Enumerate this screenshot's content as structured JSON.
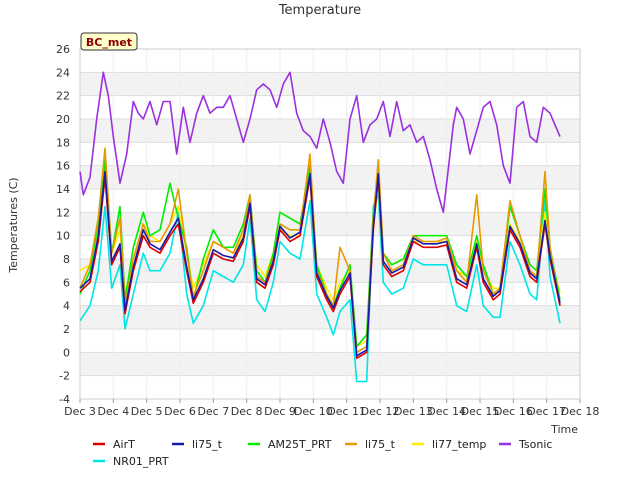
{
  "chart_data": {
    "type": "line",
    "title": "Temperature",
    "xlabel": "Time",
    "ylabel": "Temperatures (C)",
    "badge": "BC_met",
    "xlim": [
      3,
      18
    ],
    "ylim": [
      -4,
      26
    ],
    "x_ticks": [
      "Dec 3",
      "Dec 4",
      "Dec 5",
      "Dec 6",
      "Dec 7",
      "Dec 8",
      "Dec 9",
      "Dec 10",
      "Dec 11",
      "Dec 12",
      "Dec 13",
      "Dec 14",
      "Dec 15",
      "Dec 16",
      "Dec 17",
      "Dec 18"
    ],
    "y_ticks": [
      -4,
      -2,
      0,
      2,
      4,
      6,
      8,
      10,
      12,
      14,
      16,
      18,
      20,
      22,
      24,
      26
    ],
    "grid": true,
    "legend_position": "bottom",
    "series": [
      {
        "name": "AirT",
        "color": "#dd0000",
        "x": [
          3.0,
          3.3,
          3.55,
          3.75,
          3.95,
          4.2,
          4.35,
          4.6,
          4.9,
          5.1,
          5.4,
          5.7,
          5.95,
          6.2,
          6.4,
          6.7,
          7.0,
          7.3,
          7.6,
          7.9,
          8.1,
          8.3,
          8.55,
          8.8,
          9.0,
          9.3,
          9.6,
          9.9,
          10.1,
          10.4,
          10.6,
          10.8,
          11.1,
          11.3,
          11.6,
          11.8,
          11.95,
          12.1,
          12.35,
          12.7,
          13.0,
          13.3,
          13.7,
          14.0,
          14.3,
          14.6,
          14.9,
          15.1,
          15.4,
          15.6,
          15.9,
          16.2,
          16.5,
          16.7,
          16.95,
          17.1,
          17.4
        ],
        "y": [
          5.2,
          6.0,
          9.5,
          15.0,
          7.5,
          9.0,
          3.3,
          7.0,
          10.0,
          9.0,
          8.5,
          10.0,
          11.0,
          7.0,
          4.2,
          6.0,
          8.5,
          8.0,
          7.8,
          9.5,
          12.5,
          6.0,
          5.5,
          7.5,
          10.5,
          9.5,
          10.0,
          15.0,
          6.5,
          4.5,
          3.5,
          5.0,
          6.5,
          -0.5,
          0.0,
          10.5,
          15.0,
          7.5,
          6.5,
          7.0,
          9.5,
          9.0,
          9.0,
          9.2,
          6.0,
          5.5,
          9.0,
          6.0,
          4.5,
          5.0,
          10.5,
          9.0,
          6.5,
          6.0,
          11.0,
          8.0,
          4.0
        ]
      },
      {
        "name": "li75_t",
        "color": "#1a1aaa",
        "x": [
          3.0,
          3.3,
          3.55,
          3.75,
          3.95,
          4.2,
          4.35,
          4.6,
          4.9,
          5.1,
          5.4,
          5.7,
          5.95,
          6.2,
          6.4,
          6.7,
          7.0,
          7.3,
          7.6,
          7.9,
          8.1,
          8.3,
          8.55,
          8.8,
          9.0,
          9.3,
          9.6,
          9.9,
          10.1,
          10.4,
          10.6,
          10.8,
          11.1,
          11.3,
          11.6,
          11.8,
          11.95,
          12.1,
          12.35,
          12.7,
          13.0,
          13.3,
          13.7,
          14.0,
          14.3,
          14.6,
          14.9,
          15.1,
          15.4,
          15.6,
          15.9,
          16.2,
          16.5,
          16.7,
          16.95,
          17.1,
          17.4
        ],
        "y": [
          5.5,
          6.3,
          10.0,
          15.5,
          7.8,
          9.3,
          3.6,
          7.3,
          10.5,
          9.3,
          8.8,
          10.3,
          11.5,
          7.3,
          4.5,
          6.3,
          8.8,
          8.3,
          8.1,
          9.8,
          12.8,
          6.3,
          5.8,
          7.8,
          10.8,
          9.8,
          10.3,
          15.3,
          6.8,
          4.8,
          3.8,
          5.3,
          6.8,
          -0.3,
          0.2,
          10.8,
          15.3,
          7.8,
          6.8,
          7.3,
          9.8,
          9.3,
          9.3,
          9.5,
          6.3,
          5.8,
          9.3,
          6.3,
          4.8,
          5.3,
          10.8,
          9.3,
          6.8,
          6.3,
          11.3,
          8.3,
          4.2
        ]
      },
      {
        "name": "AM25T_PRT",
        "color": "#00ee00",
        "x": [
          3.0,
          3.3,
          3.55,
          3.75,
          3.95,
          4.2,
          4.35,
          4.6,
          4.9,
          5.1,
          5.4,
          5.7,
          5.95,
          6.2,
          6.4,
          6.7,
          7.0,
          7.3,
          7.6,
          7.9,
          8.1,
          8.3,
          8.55,
          8.8,
          9.0,
          9.3,
          9.6,
          9.9,
          10.1,
          10.4,
          10.6,
          10.8,
          11.1,
          11.3,
          11.6,
          11.8,
          11.95,
          12.1,
          12.35,
          12.7,
          13.0,
          13.3,
          13.7,
          14.0,
          14.3,
          14.6,
          14.9,
          15.1,
          15.4,
          15.6,
          15.9,
          16.2,
          16.5,
          16.7,
          16.95,
          17.1,
          17.4
        ],
        "y": [
          5.0,
          7.0,
          11.0,
          16.5,
          8.5,
          12.5,
          4.5,
          9.0,
          12.0,
          10.0,
          10.5,
          14.5,
          11.5,
          9.0,
          4.5,
          8.0,
          10.5,
          9.0,
          9.0,
          11.0,
          13.5,
          7.0,
          6.0,
          8.5,
          12.0,
          11.5,
          11.0,
          16.0,
          7.5,
          5.0,
          4.0,
          5.5,
          7.5,
          0.5,
          1.5,
          12.0,
          15.5,
          8.5,
          7.5,
          8.0,
          10.0,
          10.0,
          10.0,
          10.0,
          7.5,
          6.5,
          10.0,
          7.5,
          5.0,
          5.5,
          12.5,
          10.0,
          7.5,
          7.0,
          14.0,
          9.0,
          4.5
        ]
      },
      {
        "name": "li75_t",
        "color": "#e69a00",
        "x": [
          3.0,
          3.3,
          3.55,
          3.75,
          3.95,
          4.2,
          4.35,
          4.6,
          4.9,
          5.1,
          5.4,
          5.7,
          5.95,
          6.2,
          6.4,
          6.7,
          7.0,
          7.3,
          7.6,
          7.9,
          8.1,
          8.3,
          8.55,
          8.8,
          9.0,
          9.3,
          9.6,
          9.9,
          10.1,
          10.4,
          10.6,
          10.8,
          11.1,
          11.3,
          11.6,
          11.8,
          11.95,
          12.1,
          12.35,
          12.7,
          13.0,
          13.3,
          13.7,
          14.0,
          14.3,
          14.6,
          14.9,
          15.1,
          15.4,
          15.6,
          15.9,
          16.2,
          16.5,
          16.7,
          16.95,
          17.1,
          17.4
        ],
        "y": [
          5.5,
          7.5,
          11.5,
          17.5,
          8.5,
          11.5,
          4.0,
          8.0,
          11.0,
          9.5,
          9.5,
          11.0,
          14.0,
          8.5,
          4.8,
          7.0,
          9.5,
          9.0,
          8.5,
          10.5,
          13.5,
          6.5,
          6.0,
          8.0,
          11.0,
          10.5,
          10.5,
          17.0,
          7.0,
          5.0,
          4.0,
          9.0,
          7.0,
          0.0,
          0.5,
          11.5,
          16.5,
          8.5,
          7.0,
          7.5,
          10.0,
          9.5,
          9.5,
          9.8,
          7.0,
          6.0,
          13.5,
          7.0,
          5.0,
          5.5,
          13.0,
          10.0,
          7.0,
          6.5,
          15.5,
          9.0,
          4.0
        ]
      },
      {
        "name": "li77_temp",
        "color": "#ffee00",
        "x": [
          3.0,
          3.3,
          3.55,
          3.75,
          3.95,
          4.2,
          4.35,
          4.6,
          4.9,
          5.1,
          5.4,
          5.7,
          5.95,
          6.2,
          6.4,
          6.7,
          7.0,
          7.3,
          7.6,
          7.9,
          8.1,
          8.3,
          8.55,
          8.8,
          9.0,
          9.3,
          9.6,
          9.9,
          10.1,
          10.4,
          10.6,
          10.8,
          11.1,
          11.3,
          11.6,
          11.8,
          11.95,
          12.1,
          12.35,
          12.7,
          13.0,
          13.3,
          13.7,
          14.0,
          14.3,
          14.6,
          14.9,
          15.1,
          15.4,
          15.6,
          15.9,
          16.2,
          16.5,
          16.7,
          16.95,
          17.1,
          17.4
        ],
        "y": [
          7.0,
          7.5,
          10.5,
          16.0,
          8.5,
          10.5,
          5.0,
          8.0,
          11.0,
          10.0,
          9.5,
          11.0,
          12.5,
          8.5,
          5.5,
          7.5,
          9.5,
          9.0,
          8.5,
          10.0,
          12.5,
          7.5,
          6.5,
          8.5,
          10.5,
          10.0,
          10.0,
          15.0,
          7.5,
          5.5,
          4.5,
          6.0,
          7.0,
          0.5,
          1.0,
          10.5,
          14.5,
          8.5,
          7.5,
          8.0,
          9.5,
          9.5,
          9.5,
          9.5,
          7.0,
          6.5,
          9.5,
          7.0,
          5.5,
          5.5,
          11.0,
          9.5,
          7.0,
          6.5,
          12.0,
          8.5,
          5.0
        ]
      },
      {
        "name": "Tsonic",
        "color": "#9a30e0",
        "x": [
          3.0,
          3.1,
          3.3,
          3.5,
          3.7,
          3.85,
          4.0,
          4.2,
          4.4,
          4.6,
          4.75,
          4.9,
          5.1,
          5.3,
          5.5,
          5.7,
          5.9,
          6.1,
          6.3,
          6.5,
          6.7,
          6.9,
          7.1,
          7.3,
          7.5,
          7.7,
          7.9,
          8.1,
          8.3,
          8.5,
          8.7,
          8.9,
          9.1,
          9.3,
          9.5,
          9.7,
          9.9,
          10.1,
          10.3,
          10.5,
          10.7,
          10.9,
          11.1,
          11.3,
          11.5,
          11.7,
          11.9,
          12.1,
          12.3,
          12.5,
          12.7,
          12.9,
          13.1,
          13.3,
          13.5,
          13.7,
          13.9,
          14.1,
          14.2,
          14.3,
          14.5,
          14.7,
          14.9,
          15.1,
          15.3,
          15.5,
          15.7,
          15.9,
          16.1,
          16.3,
          16.5,
          16.7,
          16.9,
          17.1,
          17.4
        ],
        "y": [
          15.5,
          13.5,
          15.0,
          20.0,
          24.0,
          22.0,
          18.5,
          14.5,
          17.0,
          21.5,
          20.5,
          20.0,
          21.5,
          19.5,
          21.5,
          21.5,
          17.0,
          21.0,
          18.0,
          20.5,
          22.0,
          20.5,
          21.0,
          21.0,
          22.0,
          20.0,
          18.0,
          20.0,
          22.5,
          23.0,
          22.5,
          21.0,
          23.0,
          24.0,
          20.5,
          19.0,
          18.5,
          17.5,
          20.0,
          18.0,
          15.5,
          14.5,
          20.0,
          22.0,
          18.0,
          19.5,
          20.0,
          21.5,
          18.5,
          21.5,
          19.0,
          19.5,
          18.0,
          18.5,
          16.5,
          14.0,
          12.0,
          17.0,
          19.5,
          21.0,
          20.0,
          17.0,
          19.0,
          21.0,
          21.5,
          19.5,
          16.0,
          14.5,
          21.0,
          21.5,
          18.5,
          18.0,
          21.0,
          20.5,
          18.5
        ]
      },
      {
        "name": "NR01_PRT",
        "color": "#00e5e5",
        "x": [
          3.0,
          3.3,
          3.55,
          3.75,
          3.95,
          4.2,
          4.35,
          4.6,
          4.9,
          5.1,
          5.4,
          5.7,
          5.95,
          6.2,
          6.4,
          6.7,
          7.0,
          7.3,
          7.6,
          7.9,
          8.1,
          8.3,
          8.55,
          8.8,
          9.0,
          9.3,
          9.6,
          9.9,
          10.1,
          10.4,
          10.6,
          10.8,
          11.1,
          11.3,
          11.6,
          11.8,
          11.95,
          12.1,
          12.35,
          12.7,
          13.0,
          13.3,
          13.7,
          14.0,
          14.3,
          14.6,
          14.9,
          15.1,
          15.4,
          15.6,
          15.9,
          16.2,
          16.5,
          16.7,
          16.95,
          17.1,
          17.4
        ],
        "y": [
          2.7,
          4.0,
          7.0,
          12.5,
          5.5,
          7.5,
          2.0,
          5.0,
          8.5,
          7.0,
          7.0,
          8.5,
          12.0,
          5.0,
          2.5,
          4.0,
          7.0,
          6.5,
          6.0,
          7.5,
          11.5,
          4.5,
          3.5,
          6.0,
          9.5,
          8.5,
          8.0,
          13.0,
          5.0,
          3.0,
          1.5,
          3.5,
          4.5,
          -2.5,
          -2.5,
          12.5,
          13.5,
          6.0,
          5.0,
          5.5,
          8.0,
          7.5,
          7.5,
          7.5,
          4.0,
          3.5,
          7.5,
          4.0,
          3.0,
          3.0,
          9.5,
          7.5,
          5.0,
          4.5,
          13.0,
          6.5,
          2.5
        ]
      }
    ]
  }
}
